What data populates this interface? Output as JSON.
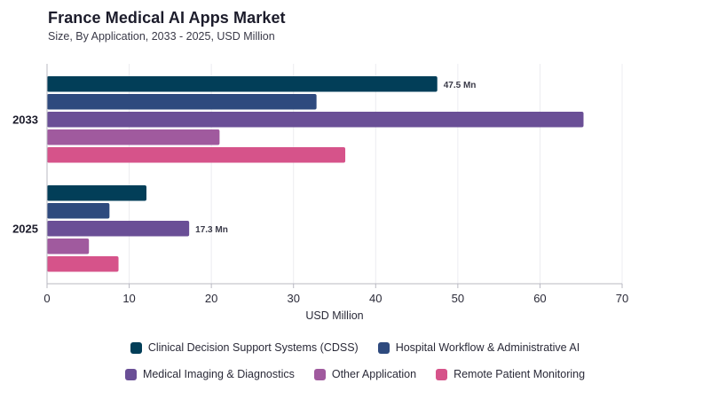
{
  "title": "France Medical AI Apps Market",
  "subtitle": "Size, By Application, 2033 - 2025, USD Million",
  "chart_data": {
    "type": "bar",
    "orientation": "horizontal",
    "categories": [
      "2033",
      "2025"
    ],
    "series": [
      {
        "name": "Clinical Decision Support Systems (CDSS)",
        "color": "#023e58",
        "values": [
          47.5,
          12.1
        ]
      },
      {
        "name": "Hospital Workflow & Administrative AI",
        "color": "#2e4a7e",
        "values": [
          32.8,
          7.6
        ]
      },
      {
        "name": "Medical Imaging & Diagnostics",
        "color": "#6a4f96",
        "values": [
          65.3,
          17.3
        ]
      },
      {
        "name": "Other Application",
        "color": "#a05a9e",
        "values": [
          21.0,
          5.1
        ]
      },
      {
        "name": "Remote Patient Monitoring",
        "color": "#d6538a",
        "values": [
          36.3,
          8.7
        ]
      }
    ],
    "data_labels": [
      {
        "category": "2033",
        "series": "Clinical Decision Support Systems (CDSS)",
        "text": "47.5 Mn"
      },
      {
        "category": "2025",
        "series": "Medical Imaging & Diagnostics",
        "text": "17.3 Mn"
      }
    ],
    "xlabel": "USD Million",
    "ylabel": "",
    "xlim": [
      0,
      70
    ],
    "xticks": [
      "0",
      "10",
      "20",
      "30",
      "40",
      "50",
      "60",
      "70"
    ],
    "grid": "vertical",
    "legend_position": "bottom"
  }
}
